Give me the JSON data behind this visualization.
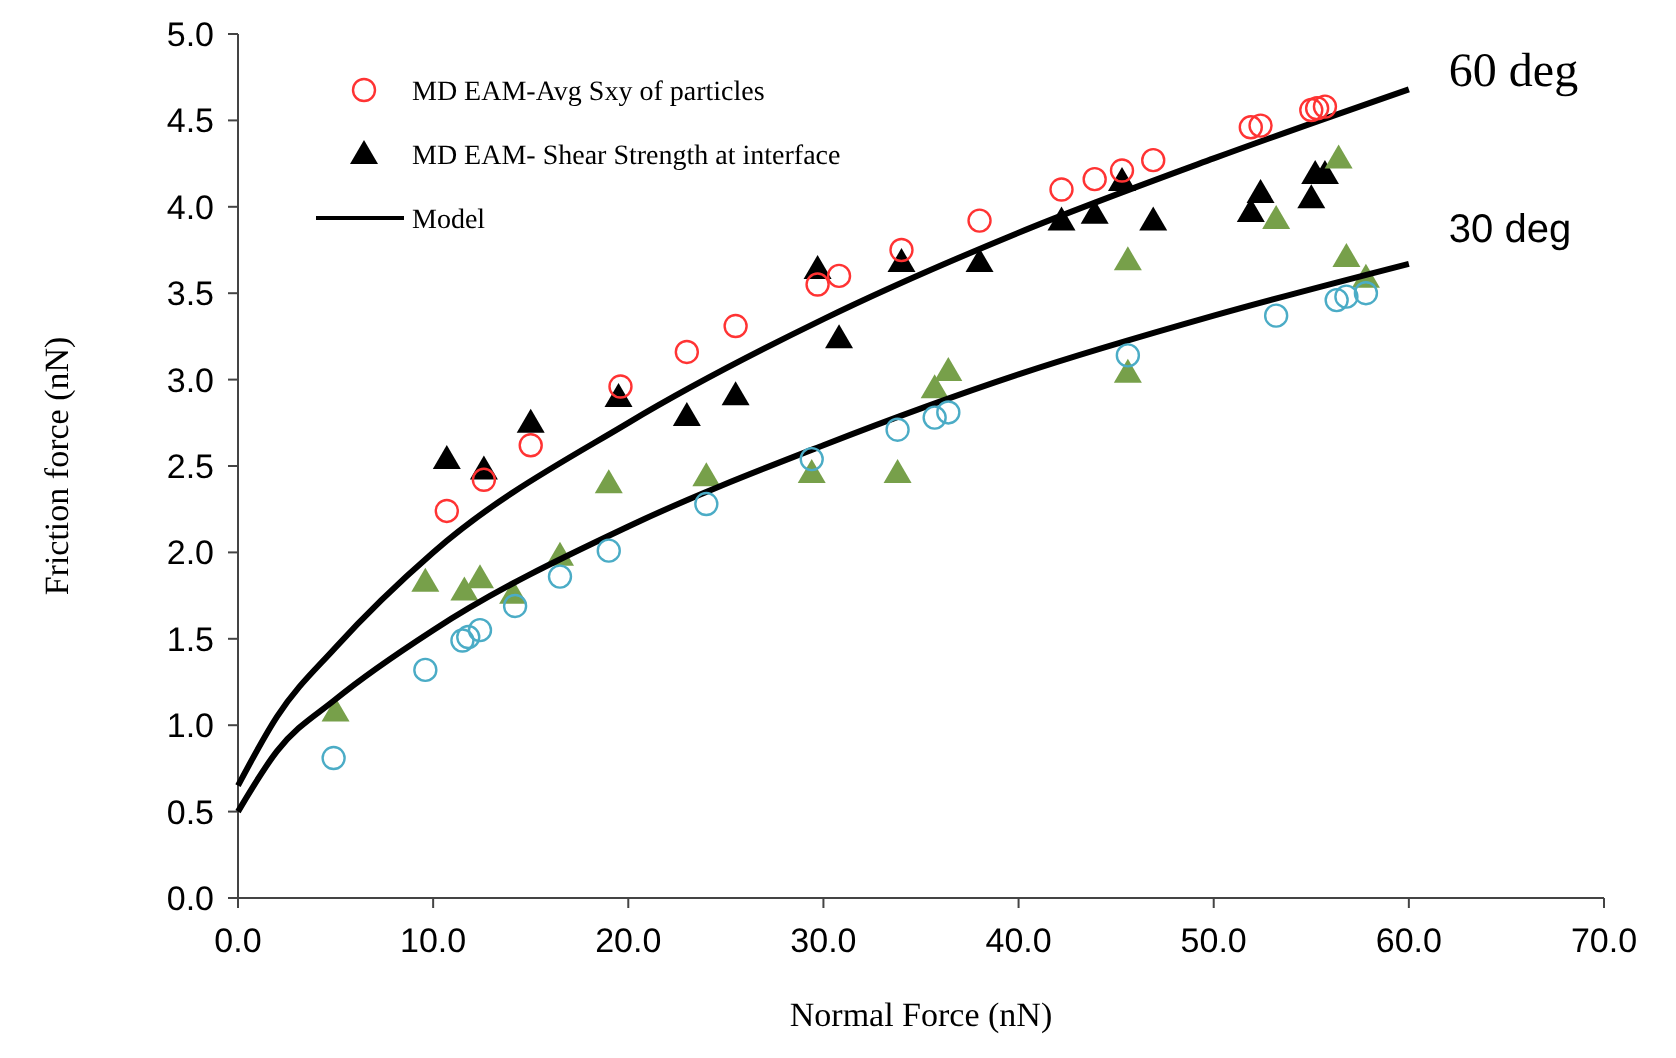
{
  "chart_data": {
    "type": "scatter",
    "xlabel": "Normal Force (nN)",
    "ylabel": "Friction force (nN)",
    "xlim": [
      0,
      70
    ],
    "ylim": [
      0,
      5
    ],
    "xticks": [
      {
        "value": 0,
        "label": "0.0"
      },
      {
        "value": 10,
        "label": "10.0"
      },
      {
        "value": 20,
        "label": "20.0"
      },
      {
        "value": 30,
        "label": "30.0"
      },
      {
        "value": 40,
        "label": "40.0"
      },
      {
        "value": 50,
        "label": "50.0"
      },
      {
        "value": 60,
        "label": "60.0"
      },
      {
        "value": 70,
        "label": "70.0"
      }
    ],
    "yticks": [
      {
        "value": 0,
        "label": "0.0"
      },
      {
        "value": 0.5,
        "label": "0.5"
      },
      {
        "value": 1,
        "label": "1.0"
      },
      {
        "value": 1.5,
        "label": "1.5"
      },
      {
        "value": 2,
        "label": "2.0"
      },
      {
        "value": 2.5,
        "label": "2.5"
      },
      {
        "value": 3,
        "label": "3.0"
      },
      {
        "value": 3.5,
        "label": "3.5"
      },
      {
        "value": 4,
        "label": "4.0"
      },
      {
        "value": 4.5,
        "label": "4.5"
      },
      {
        "value": 5,
        "label": "5.0"
      }
    ],
    "grid": false,
    "legend": "top left",
    "series": [
      {
        "name": "MD EAM-Avg Sxy of particles",
        "marker": "circle",
        "color": "#ff3333",
        "x": [
          10.7,
          12.6,
          15.0,
          19.6,
          23.0,
          25.5,
          29.7,
          30.8,
          34.0,
          38.0,
          42.2,
          43.9,
          45.3,
          46.9,
          51.9,
          52.4,
          55.0,
          55.3,
          55.7
        ],
        "values": [
          2.24,
          2.42,
          2.62,
          2.96,
          3.16,
          3.31,
          3.55,
          3.6,
          3.75,
          3.92,
          4.1,
          4.16,
          4.21,
          4.27,
          4.46,
          4.47,
          4.56,
          4.57,
          4.58
        ]
      },
      {
        "name": "MD EAM- Shear Strength at interface",
        "marker": "triangle",
        "color": "#000000",
        "x": [
          10.7,
          12.6,
          15.0,
          19.5,
          23.0,
          25.5,
          29.7,
          30.8,
          34.0,
          38.0,
          42.2,
          43.9,
          45.3,
          46.9,
          51.9,
          52.4,
          55.0,
          55.2,
          55.7
        ],
        "values": [
          2.54,
          2.48,
          2.75,
          2.9,
          2.79,
          2.91,
          3.64,
          3.24,
          3.68,
          3.68,
          3.92,
          3.96,
          4.15,
          3.92,
          3.97,
          4.08,
          4.05,
          4.19,
          4.19
        ]
      },
      {
        "marker": "triangle",
        "color": "#77a04a",
        "x": [
          5.0,
          9.6,
          11.6,
          12.4,
          14.1,
          16.5,
          19.0,
          24.0,
          29.4,
          33.8,
          35.7,
          36.4,
          45.6,
          45.6,
          53.2,
          56.4,
          56.8,
          57.8
        ],
        "values": [
          1.08,
          1.83,
          1.78,
          1.85,
          1.76,
          1.98,
          2.4,
          2.44,
          2.46,
          2.46,
          2.95,
          3.05,
          3.69,
          3.04,
          3.93,
          4.28,
          3.71,
          3.59
        ]
      },
      {
        "marker": "circle",
        "color": "#4bacc6",
        "x": [
          4.9,
          9.6,
          11.5,
          11.8,
          12.4,
          14.2,
          16.5,
          19.0,
          24.0,
          29.4,
          33.8,
          35.7,
          36.4,
          45.6,
          53.2,
          56.3,
          56.8,
          57.8
        ],
        "values": [
          0.81,
          1.32,
          1.49,
          1.51,
          1.55,
          1.69,
          1.86,
          2.01,
          2.28,
          2.54,
          2.71,
          2.78,
          2.81,
          3.14,
          3.37,
          3.46,
          3.48,
          3.5
        ]
      },
      {
        "name": "Model",
        "type": "line",
        "marker": "none",
        "line_style": "solid",
        "color": "#000000",
        "x": [
          0,
          2,
          5,
          10,
          20,
          30,
          40,
          50,
          60
        ],
        "values": [
          0.65,
          1.05,
          1.45,
          2.0,
          2.75,
          3.35,
          3.85,
          4.28,
          4.68
        ]
      },
      {
        "type": "line",
        "marker": "none",
        "line_style": "solid",
        "color": "#000000",
        "x": [
          0,
          2,
          5,
          10,
          20,
          30,
          40,
          50,
          60
        ],
        "values": [
          0.5,
          0.85,
          1.15,
          1.55,
          2.15,
          2.62,
          3.03,
          3.37,
          3.67
        ]
      }
    ],
    "annotations": [
      {
        "text": "60 deg",
        "x": 60,
        "y": 4.68
      },
      {
        "text": "30 deg",
        "x": 60,
        "y": 3.67
      }
    ]
  }
}
